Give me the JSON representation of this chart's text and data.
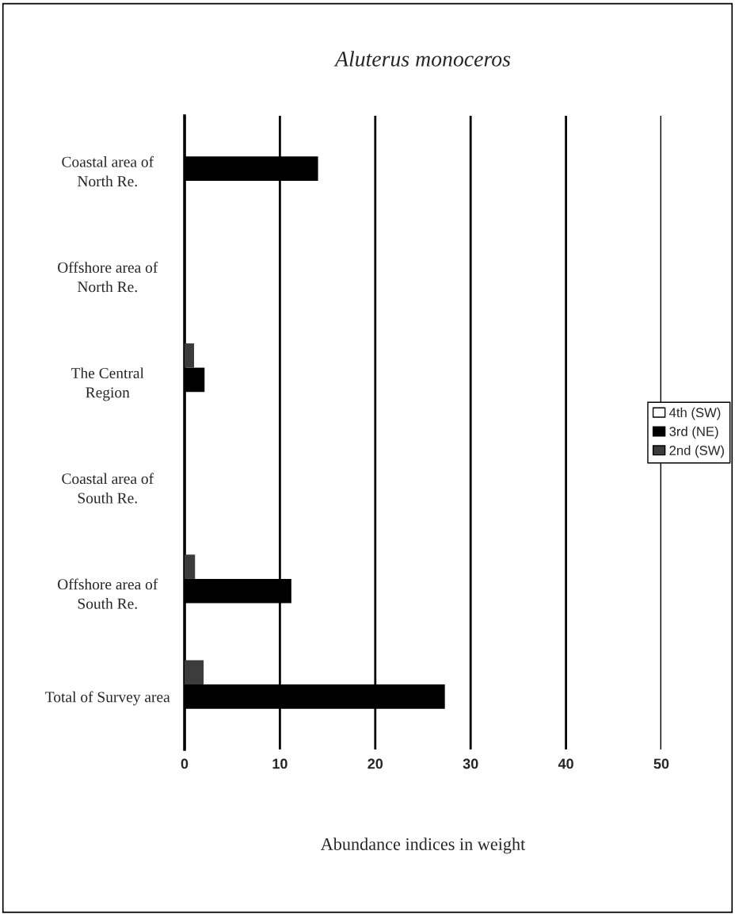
{
  "chart_data": {
    "type": "bar",
    "orientation": "horizontal",
    "title": "Aluterus monoceros",
    "xlabel": "Abundance indices in weight",
    "categories": [
      "Coastal area of\nNorth Re.",
      "Offshore area of\nNorth Re.",
      "The Central\nRegion",
      "Coastal area of\nSouth Re.",
      "Offshore area of\nSouth Re.",
      "Total of Survey area"
    ],
    "series": [
      {
        "name": "4th (SW)",
        "color": "#ffffff",
        "values": [
          null,
          null,
          null,
          null,
          null,
          null
        ]
      },
      {
        "name": "3rd (NE)",
        "color": "#000000",
        "values": [
          14.0,
          0,
          2.1,
          0,
          11.2,
          27.3
        ]
      },
      {
        "name": "2nd (SW)",
        "color": "#3c3c3c",
        "values": [
          0,
          0,
          1.0,
          0,
          1.1,
          2.0
        ]
      }
    ],
    "xlim": [
      0,
      50
    ],
    "xticks": [
      0,
      10,
      20,
      30,
      40,
      50
    ],
    "grid": "x",
    "legend": "right"
  }
}
